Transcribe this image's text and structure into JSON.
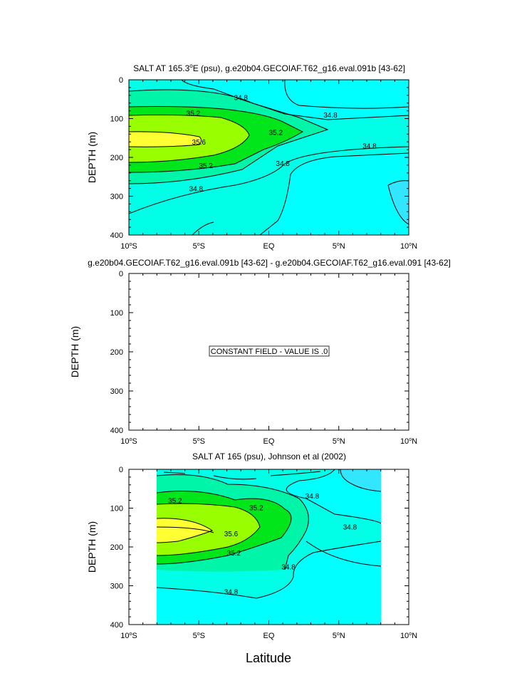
{
  "x_axis_label": "Latitude",
  "chart_data": [
    {
      "type": "contour",
      "title_prefix": "SALT AT 165.3",
      "title_sup": "o",
      "title_suffix": "E (psu), g.e20b04.GECOIAF.T62_g16.eval.091b [43-62]",
      "ylabel": "DEPTH (m)",
      "xlabel": "Latitude",
      "xlim": [
        -10,
        10
      ],
      "ylim": [
        400,
        0
      ],
      "x_ticks": [
        {
          "v": -10,
          "num": "10",
          "sup": "o",
          "suf": "S"
        },
        {
          "v": -5,
          "num": "5",
          "sup": "o",
          "suf": "S"
        },
        {
          "v": 0,
          "num": "EQ",
          "sup": "",
          "suf": ""
        },
        {
          "v": 5,
          "num": "5",
          "sup": "o",
          "suf": "N"
        },
        {
          "v": 10,
          "num": "10",
          "sup": "o",
          "suf": "N"
        }
      ],
      "y_ticks": [
        "0",
        "100",
        "200",
        "300",
        "400"
      ],
      "contour_levels": [
        "34.8",
        "35.2",
        "35.6"
      ],
      "contour_labels": [
        {
          "text": "34.8",
          "lat": -2,
          "depth": 45
        },
        {
          "text": "35.2",
          "lat": -5.4,
          "depth": 85
        },
        {
          "text": "34.8",
          "lat": 4.4,
          "depth": 90
        },
        {
          "text": "35.6",
          "lat": -5,
          "depth": 160
        },
        {
          "text": "35.2",
          "lat": 0.5,
          "depth": 135
        },
        {
          "text": "34.8",
          "lat": 7.2,
          "depth": 170
        },
        {
          "text": "35.2",
          "lat": -4.5,
          "depth": 220
        },
        {
          "text": "34.8",
          "lat": 1,
          "depth": 215
        },
        {
          "text": "34.8",
          "lat": -5.2,
          "depth": 280
        }
      ]
    },
    {
      "type": "contour",
      "title": "g.e20b04.GECOIAF.T62_g16.eval.091b [43-62] - g.e20b04.GECOIAF.T62_g16.eval.091 [43-62]",
      "ylabel": "DEPTH (m)",
      "xlim": [
        -10,
        10
      ],
      "ylim": [
        400,
        0
      ],
      "x_ticks": [
        {
          "v": -10,
          "num": "10",
          "sup": "o",
          "suf": "S"
        },
        {
          "v": -5,
          "num": "5",
          "sup": "o",
          "suf": "S"
        },
        {
          "v": 0,
          "num": "EQ",
          "sup": "",
          "suf": ""
        },
        {
          "v": 5,
          "num": "5",
          "sup": "o",
          "suf": "N"
        },
        {
          "v": 10,
          "num": "10",
          "sup": "o",
          "suf": "N"
        }
      ],
      "y_ticks": [
        "0",
        "100",
        "200",
        "300",
        "400"
      ],
      "annotation": "CONSTANT FIELD - VALUE IS .0",
      "value": 0
    },
    {
      "type": "contour",
      "title": "SALT AT 165 (psu), Johnson et al (2002)",
      "ylabel": "DEPTH (m)",
      "xlim": [
        -10,
        10
      ],
      "ylim": [
        400,
        0
      ],
      "data_lat_range": [
        -8,
        8
      ],
      "data_depth_range": [
        0,
        400
      ],
      "x_ticks": [
        {
          "v": -10,
          "num": "10",
          "sup": "o",
          "suf": "S"
        },
        {
          "v": -5,
          "num": "5",
          "sup": "o",
          "suf": "S"
        },
        {
          "v": 0,
          "num": "EQ",
          "sup": "",
          "suf": ""
        },
        {
          "v": 5,
          "num": "5",
          "sup": "o",
          "suf": "N"
        },
        {
          "v": 10,
          "num": "10",
          "sup": "o",
          "suf": "N"
        }
      ],
      "y_ticks": [
        "0",
        "100",
        "200",
        "300",
        "400"
      ],
      "contour_levels": [
        "34.8",
        "35.2",
        "35.6"
      ],
      "contour_labels": [
        {
          "text": "35.2",
          "lat": -6.7,
          "depth": 80
        },
        {
          "text": "35.2",
          "lat": -0.9,
          "depth": 98
        },
        {
          "text": "34.8",
          "lat": 3.1,
          "depth": 68
        },
        {
          "text": "35.6",
          "lat": -2.7,
          "depth": 165
        },
        {
          "text": "34.8",
          "lat": 5.8,
          "depth": 148
        },
        {
          "text": "35.2",
          "lat": -2.5,
          "depth": 215
        },
        {
          "text": "34.8",
          "lat": 1.4,
          "depth": 250
        },
        {
          "text": "34.8",
          "lat": -2.7,
          "depth": 315
        }
      ]
    }
  ],
  "colors": {
    "s34_6": "#00FFFF",
    "s34_7": "#33E6FF",
    "s34_8": "#00FFE6",
    "s35_0": "#00F5A8",
    "s35_2": "#00E61A",
    "s35_4": "#99FF00",
    "s35_6": "#FFFF33",
    "s35_8": "#FFE050"
  }
}
